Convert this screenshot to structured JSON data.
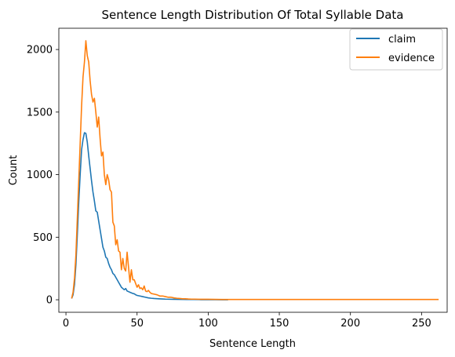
{
  "chart_data": {
    "type": "line",
    "title": "Sentence Length Distribution Of Total Syllable Data",
    "xlabel": "Sentence Length",
    "ylabel": "Count",
    "xlim": [
      -5,
      268
    ],
    "ylim": [
      -100,
      2170
    ],
    "xticks": [
      0,
      50,
      100,
      150,
      200,
      250
    ],
    "yticks": [
      0,
      500,
      1000,
      1500,
      2000
    ],
    "grid": false,
    "legend_position": "top-right",
    "series": [
      {
        "name": "claim",
        "color": "#1f77b4",
        "x": [
          4,
          5,
          6,
          7,
          8,
          9,
          10,
          11,
          12,
          13,
          14,
          15,
          16,
          17,
          18,
          19,
          20,
          21,
          22,
          23,
          24,
          25,
          26,
          27,
          28,
          29,
          30,
          31,
          32,
          33,
          34,
          35,
          36,
          37,
          38,
          39,
          40,
          41,
          42,
          43,
          44,
          45,
          46,
          47,
          48,
          49,
          50,
          52,
          54,
          56,
          58,
          60,
          62,
          65,
          68,
          70,
          75,
          80,
          85,
          90,
          95,
          100,
          105,
          110,
          114
        ],
        "values": [
          10,
          40,
          120,
          280,
          520,
          780,
          1000,
          1200,
          1280,
          1335,
          1330,
          1260,
          1150,
          1050,
          950,
          860,
          790,
          710,
          700,
          630,
          560,
          490,
          420,
          390,
          340,
          330,
          290,
          260,
          240,
          210,
          200,
          180,
          160,
          140,
          120,
          100,
          90,
          80,
          90,
          70,
          65,
          60,
          55,
          50,
          48,
          40,
          35,
          30,
          25,
          20,
          15,
          12,
          10,
          8,
          6,
          5,
          4,
          3,
          2,
          2,
          1,
          1,
          1,
          0,
          0
        ]
      },
      {
        "name": "evidence",
        "color": "#ff7f0e",
        "x": [
          4,
          5,
          6,
          7,
          8,
          9,
          10,
          11,
          12,
          13,
          14,
          15,
          16,
          17,
          18,
          19,
          20,
          21,
          22,
          23,
          24,
          25,
          26,
          27,
          28,
          29,
          30,
          31,
          32,
          33,
          34,
          35,
          36,
          37,
          38,
          39,
          40,
          41,
          42,
          43,
          44,
          45,
          46,
          47,
          48,
          49,
          50,
          51,
          52,
          53,
          54,
          55,
          56,
          57,
          58,
          59,
          60,
          62,
          64,
          66,
          68,
          70,
          72,
          74,
          76,
          78,
          80,
          82,
          84,
          86,
          88,
          90,
          95,
          100,
          105,
          110,
          115,
          120,
          130,
          140,
          150,
          160,
          180,
          200,
          220,
          240,
          262
        ],
        "values": [
          10,
          60,
          170,
          360,
          650,
          950,
          1250,
          1550,
          1780,
          1900,
          2070,
          1950,
          1900,
          1750,
          1640,
          1580,
          1610,
          1500,
          1380,
          1460,
          1290,
          1150,
          1180,
          1000,
          920,
          1000,
          960,
          880,
          860,
          620,
          590,
          440,
          480,
          390,
          380,
          240,
          330,
          250,
          230,
          380,
          260,
          140,
          240,
          160,
          160,
          130,
          100,
          120,
          90,
          95,
          80,
          110,
          70,
          65,
          75,
          60,
          50,
          45,
          40,
          30,
          30,
          25,
          20,
          20,
          15,
          12,
          10,
          8,
          8,
          6,
          5,
          5,
          4,
          4,
          3,
          2,
          2,
          2,
          2,
          2,
          2,
          2,
          2,
          2,
          2,
          2,
          2
        ]
      }
    ]
  }
}
